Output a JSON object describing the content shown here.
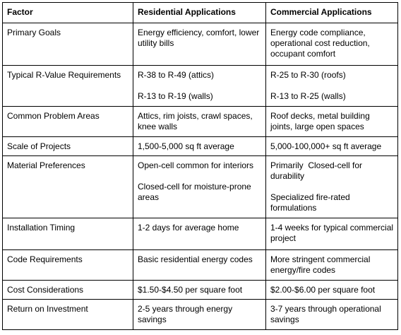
{
  "table": {
    "header": [
      "Factor",
      "Residential Applications",
      "Commercial Applications"
    ],
    "rows": [
      [
        [
          "Primary Goals"
        ],
        [
          "Energy efficiency, comfort, lower utility bills"
        ],
        [
          "Energy code compliance, operational cost reduction, occupant comfort"
        ]
      ],
      [
        [
          "Typical R-Value Requirements"
        ],
        [
          "R-38 to R-49 (attics)",
          "R-13 to R-19 (walls)"
        ],
        [
          "R-25 to R-30 (roofs)",
          "R-13 to R-25 (walls)"
        ]
      ],
      [
        [
          "Common Problem Areas"
        ],
        [
          "Attics, rim joists, crawl spaces, knee walls"
        ],
        [
          "Roof decks, metal building joints, large open spaces"
        ]
      ],
      [
        [
          "Scale of Projects"
        ],
        [
          "1,500-5,000 sq ft average"
        ],
        [
          "5,000-100,000+ sq ft average"
        ]
      ],
      [
        [
          "Material Preferences"
        ],
        [
          "Open-cell common for interiors",
          "Closed-cell for moisture-prone areas"
        ],
        [
          "Primarily  Closed-cell for durability",
          "Specialized fire-rated formulations"
        ]
      ],
      [
        [
          "Installation Timing"
        ],
        [
          "1-2 days for average home"
        ],
        [
          "1-4 weeks for typical commercial project"
        ]
      ],
      [
        [
          "Code Requirements"
        ],
        [
          "Basic residential energy codes"
        ],
        [
          "More stringent commercial energy/fire codes"
        ]
      ],
      [
        [
          "Cost Considerations"
        ],
        [
          "$1.50-$4.50 per square foot"
        ],
        [
          "$2.00-$6.00 per square foot"
        ]
      ],
      [
        [
          "Return on Investment"
        ],
        [
          "2-5 years through energy savings"
        ],
        [
          "3-7 years through operational savings"
        ]
      ]
    ]
  }
}
